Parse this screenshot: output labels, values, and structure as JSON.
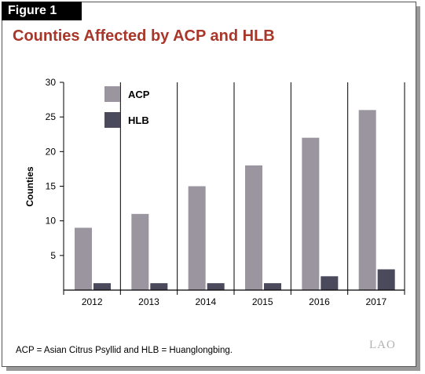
{
  "figure_label": "Figure 1",
  "title": "Counties Affected by ACP and HLB",
  "footnote": "ACP = Asian Citrus Psyllid and HLB = Huanglongbing.",
  "logo": "LAO",
  "chart_data": {
    "type": "bar",
    "categories": [
      "2012",
      "2013",
      "2014",
      "2015",
      "2016",
      "2017"
    ],
    "series": [
      {
        "name": "ACP",
        "color": "#9a959f",
        "values": [
          9,
          11,
          15,
          18,
          22,
          26
        ]
      },
      {
        "name": "HLB",
        "color": "#4a4a5c",
        "values": [
          1,
          1,
          1,
          1,
          2,
          3
        ]
      }
    ],
    "ylabel": "Counties",
    "xlabel": "",
    "ylim": [
      0,
      30
    ],
    "yticks": [
      5,
      10,
      15,
      20,
      25,
      30
    ],
    "grid": true,
    "legend": "top-left"
  }
}
